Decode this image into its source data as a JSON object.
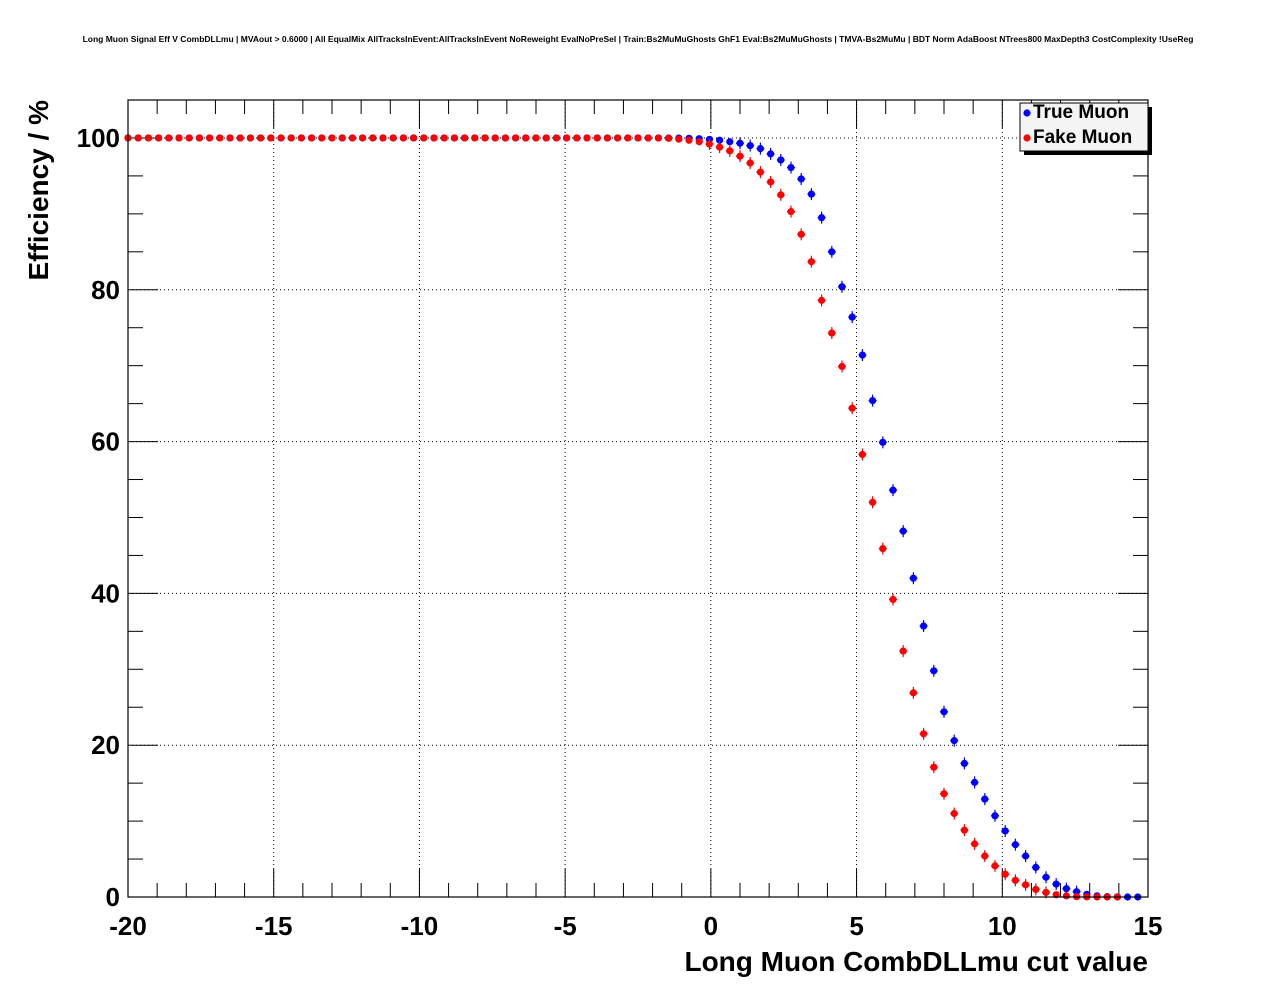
{
  "chart_data": {
    "type": "scatter",
    "title": "Long Muon Signal Eff V CombDLLmu | MVAout > 0.6000 | All EqualMix AllTracksInEvent:AllTracksInEvent NoReweight EvalNoPreSel | Train:Bs2MuMuGhosts GhF1 Eval:Bs2MuMuGhosts | TMVA-Bs2MuMu | BDT Norm AdaBoost NTrees800 MaxDepth3 CostComplexity !UseReg",
    "xlabel": "Long Muon CombDLLmu cut value",
    "ylabel": "Efficiency / %",
    "xlim": [
      -20,
      15
    ],
    "ylim": [
      0,
      105
    ],
    "xticks": [
      -20,
      -15,
      -10,
      -5,
      0,
      5,
      10,
      15
    ],
    "xtick_labels": [
      "-20",
      "-15",
      "-10",
      "-5",
      "0",
      "5",
      "10",
      "15"
    ],
    "yticks": [
      0,
      20,
      40,
      60,
      80,
      100
    ],
    "ytick_labels": [
      "0",
      "20",
      "40",
      "60",
      "80",
      "100"
    ],
    "grid": true,
    "legend_position": "top-right",
    "legend": [
      "True Muon",
      "Fake Muon"
    ],
    "series": [
      {
        "name": "True Muon",
        "color": "#0000ff",
        "x": [
          -20,
          -19.65,
          -19.3,
          -18.95,
          -18.6,
          -18.25,
          -17.9,
          -17.55,
          -17.2,
          -16.85,
          -16.5,
          -16.15,
          -15.8,
          -15.45,
          -15.1,
          -14.75,
          -14.4,
          -14.05,
          -13.7,
          -13.35,
          -13,
          -12.65,
          -12.3,
          -11.95,
          -11.6,
          -11.25,
          -10.9,
          -10.55,
          -10.2,
          -9.85,
          -9.5,
          -9.15,
          -8.8,
          -8.45,
          -8.1,
          -7.75,
          -7.4,
          -7.05,
          -6.7,
          -6.35,
          -6,
          -5.65,
          -5.3,
          -4.95,
          -4.6,
          -4.25,
          -3.9,
          -3.55,
          -3.2,
          -2.85,
          -2.5,
          -2.15,
          -1.8,
          -1.45,
          -1.1,
          -0.75,
          -0.4,
          -0.05,
          0.3,
          0.65,
          1,
          1.35,
          1.7,
          2.05,
          2.4,
          2.75,
          3.1,
          3.45,
          3.8,
          4.15,
          4.5,
          4.85,
          5.2,
          5.55,
          5.9,
          6.25,
          6.6,
          6.95,
          7.3,
          7.65,
          8,
          8.35,
          8.7,
          9.05,
          9.4,
          9.75,
          10.1,
          10.45,
          10.8,
          11.15,
          11.5,
          11.85,
          12.2,
          12.55,
          12.9,
          13.25,
          13.6,
          13.95,
          14.3,
          14.65
        ],
        "y": [
          100,
          100,
          100,
          100,
          100,
          100,
          100,
          100,
          100,
          100,
          100,
          100,
          100,
          100,
          100,
          100,
          100,
          100,
          100,
          100,
          100,
          100,
          100,
          100,
          100,
          100,
          100,
          100,
          100,
          100,
          100,
          100,
          100,
          100,
          100,
          100,
          100,
          100,
          100,
          100,
          100,
          100,
          100,
          100,
          100,
          100,
          100,
          100,
          100,
          100,
          100,
          100,
          100,
          99.99,
          99.98,
          99.95,
          99.9,
          99.8,
          99.7,
          99.5,
          99.3,
          99.0,
          98.6,
          97.9,
          97.1,
          96.1,
          94.6,
          92.6,
          89.5,
          85.0,
          80.4,
          76.4,
          71.4,
          65.4,
          59.9,
          53.6,
          48.2,
          42.0,
          35.7,
          29.8,
          24.4,
          20.6,
          17.6,
          15.1,
          12.9,
          10.7,
          8.7,
          6.9,
          5.4,
          3.9,
          2.6,
          1.7,
          1.1,
          0.7,
          0.35,
          0.15,
          0.05,
          0.02,
          0.0,
          0.0
        ]
      },
      {
        "name": "Fake Muon",
        "color": "#ff0000",
        "x": [
          -20,
          -19.65,
          -19.3,
          -18.95,
          -18.6,
          -18.25,
          -17.9,
          -17.55,
          -17.2,
          -16.85,
          -16.5,
          -16.15,
          -15.8,
          -15.45,
          -15.1,
          -14.75,
          -14.4,
          -14.05,
          -13.7,
          -13.35,
          -13,
          -12.65,
          -12.3,
          -11.95,
          -11.6,
          -11.25,
          -10.9,
          -10.55,
          -10.2,
          -9.85,
          -9.5,
          -9.15,
          -8.8,
          -8.45,
          -8.1,
          -7.75,
          -7.4,
          -7.05,
          -6.7,
          -6.35,
          -6,
          -5.65,
          -5.3,
          -4.95,
          -4.6,
          -4.25,
          -3.9,
          -3.55,
          -3.2,
          -2.85,
          -2.5,
          -2.15,
          -1.8,
          -1.45,
          -1.1,
          -0.75,
          -0.4,
          -0.05,
          0.3,
          0.65,
          1,
          1.35,
          1.7,
          2.05,
          2.4,
          2.75,
          3.1,
          3.45,
          3.8,
          4.15,
          4.5,
          4.85,
          5.2,
          5.55,
          5.9,
          6.25,
          6.6,
          6.95,
          7.3,
          7.65,
          8,
          8.35,
          8.7,
          9.05,
          9.4,
          9.75,
          10.1,
          10.45,
          10.8,
          11.15,
          11.5,
          11.85,
          12.2,
          12.55,
          12.9,
          13.25,
          13.6,
          13.95
        ],
        "y": [
          100,
          100,
          100,
          100,
          100,
          100,
          100,
          100,
          100,
          100,
          100,
          100,
          100,
          100,
          100,
          100,
          100,
          100,
          100,
          100,
          100,
          100,
          100,
          100,
          100,
          100,
          100,
          100,
          100,
          100,
          100,
          100,
          100,
          100,
          100,
          100,
          100,
          100,
          100,
          100,
          100,
          100,
          100,
          100,
          100,
          100,
          100,
          100,
          100,
          100,
          100,
          100,
          100,
          99.95,
          99.85,
          99.7,
          99.5,
          99.2,
          98.8,
          98.3,
          97.6,
          96.7,
          95.5,
          94.2,
          92.5,
          90.3,
          87.3,
          83.7,
          78.6,
          74.3,
          69.9,
          64.4,
          58.3,
          52.0,
          45.9,
          39.2,
          32.4,
          26.9,
          21.5,
          17.1,
          13.6,
          11.0,
          8.8,
          7.0,
          5.4,
          4.1,
          3.0,
          2.2,
          1.6,
          1.0,
          0.6,
          0.3,
          0.15,
          0.05,
          0.02,
          0.0,
          0.0,
          0.0
        ]
      }
    ]
  }
}
